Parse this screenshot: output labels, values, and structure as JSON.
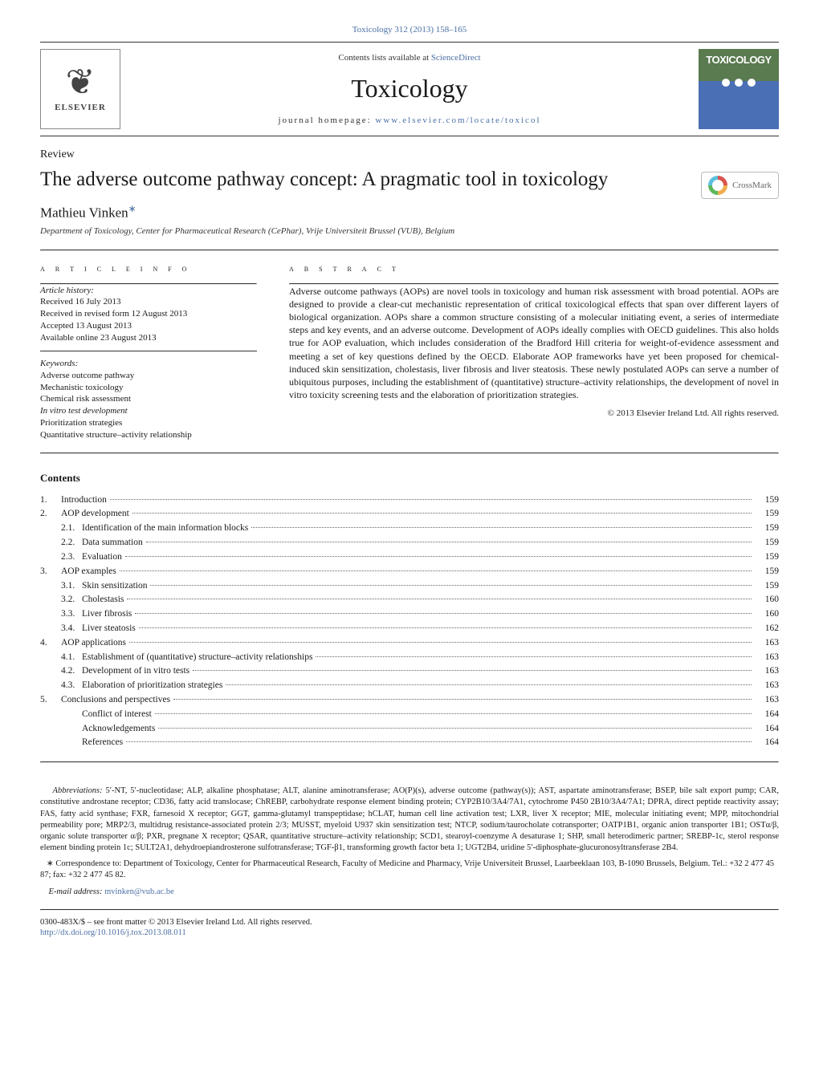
{
  "journal_ref": {
    "text": "Toxicology 312 (2013) 158–165",
    "link": "Toxicology 312 (2013) 158–165"
  },
  "header": {
    "contents_available_prefix": "Contents lists available at ",
    "contents_available_link": "ScienceDirect",
    "journal_title": "Toxicology",
    "homepage_prefix": "journal homepage: ",
    "homepage_link": "www.elsevier.com/locate/toxicol",
    "logo_left": {
      "publisher": "ELSEVIER"
    },
    "logo_right": {
      "word": "TOXICOLOGY"
    }
  },
  "review_label": "Review",
  "title": "The adverse outcome pathway concept: A pragmatic tool in toxicology",
  "crossmark_label": "CrossMark",
  "author": {
    "name": "Mathieu Vinken",
    "marker": "∗"
  },
  "affiliation": "Department of Toxicology, Center for Pharmaceutical Research (CePhar), Vrije Universiteit Brussel (VUB), Belgium",
  "article_info": {
    "heading": "a r t i c l e   i n f o",
    "history_head": "Article history:",
    "history": [
      "Received 16 July 2013",
      "Received in revised form 12 August 2013",
      "Accepted 13 August 2013",
      "Available online 23 August 2013"
    ],
    "keywords_head": "Keywords:",
    "keywords": [
      "Adverse outcome pathway",
      "Mechanistic toxicology",
      "Chemical risk assessment",
      "In vitro test development",
      "Prioritization strategies",
      "Quantitative structure–activity relationship"
    ]
  },
  "abstract": {
    "heading": "a b s t r a c t",
    "text": "Adverse outcome pathways (AOPs) are novel tools in toxicology and human risk assessment with broad potential. AOPs are designed to provide a clear-cut mechanistic representation of critical toxicological effects that span over different layers of biological organization. AOPs share a common structure consisting of a molecular initiating event, a series of intermediate steps and key events, and an adverse outcome. Development of AOPs ideally complies with OECD guidelines. This also holds true for AOP evaluation, which includes consideration of the Bradford Hill criteria for weight-of-evidence assessment and meeting a set of key questions defined by the OECD. Elaborate AOP frameworks have yet been proposed for chemical-induced skin sensitization, cholestasis, liver fibrosis and liver steatosis. These newly postulated AOPs can serve a number of ubiquitous purposes, including the establishment of (quantitative) structure–activity relationships, the development of novel in vitro toxicity screening tests and the elaboration of prioritization strategies.",
    "copyright": "© 2013 Elsevier Ireland Ltd. All rights reserved."
  },
  "contents": {
    "heading": "Contents",
    "items": [
      {
        "num": "1.",
        "label": "Introduction",
        "page": "159",
        "indent": 0
      },
      {
        "num": "2.",
        "label": "AOP development",
        "page": "159",
        "indent": 0
      },
      {
        "num": "2.1.",
        "label": "Identification of the main information blocks",
        "page": "159",
        "indent": 1
      },
      {
        "num": "2.2.",
        "label": "Data summation",
        "page": "159",
        "indent": 1
      },
      {
        "num": "2.3.",
        "label": "Evaluation",
        "page": "159",
        "indent": 1
      },
      {
        "num": "3.",
        "label": "AOP examples",
        "page": "159",
        "indent": 0
      },
      {
        "num": "3.1.",
        "label": "Skin sensitization",
        "page": "159",
        "indent": 1
      },
      {
        "num": "3.2.",
        "label": "Cholestasis",
        "page": "160",
        "indent": 1
      },
      {
        "num": "3.3.",
        "label": "Liver fibrosis",
        "page": "160",
        "indent": 1
      },
      {
        "num": "3.4.",
        "label": "Liver steatosis",
        "page": "162",
        "indent": 1
      },
      {
        "num": "4.",
        "label": "AOP applications",
        "page": "163",
        "indent": 0
      },
      {
        "num": "4.1.",
        "label": "Establishment of (quantitative) structure–activity relationships",
        "page": "163",
        "indent": 1
      },
      {
        "num": "4.2.",
        "label": "Development of in vitro tests",
        "page": "163",
        "indent": 1
      },
      {
        "num": "4.3.",
        "label": "Elaboration of prioritization strategies",
        "page": "163",
        "indent": 1
      },
      {
        "num": "5.",
        "label": "Conclusions and perspectives",
        "page": "163",
        "indent": 0
      },
      {
        "num": "",
        "label": "Conflict of interest",
        "page": "164",
        "indent": 1
      },
      {
        "num": "",
        "label": "Acknowledgements",
        "page": "164",
        "indent": 1
      },
      {
        "num": "",
        "label": "References",
        "page": "164",
        "indent": 1
      }
    ]
  },
  "abbreviations": {
    "lead": "Abbreviations:",
    "text": " 5′-NT, 5′-nucleotidase; ALP, alkaline phosphatase; ALT, alanine aminotransferase; AO(P)(s), adverse outcome (pathway(s)); AST, aspartate aminotransferase; BSEP, bile salt export pump; CAR, constitutive androstane receptor; CD36, fatty acid translocase; ChREBP, carbohydrate response element binding protein; CYP2B10/3A4/7A1, cytochrome P450 2B10/3A4/7A1; DPRA, direct peptide reactivity assay; FAS, fatty acid synthase; FXR, farnesoid X receptor; GGT, gamma-glutamyl transpeptidase; hCLAT, human cell line activation test; LXR, liver X receptor; MIE, molecular initiating event; MPP, mitochondrial permeability pore; MRP2/3, multidrug resistance-associated protein 2/3; MUSST, myeloid U937 skin sensitization test; NTCP, sodium/taurocholate cotransporter; OATP1B1, organic anion transporter 1B1; OSTα/β, organic solute transporter α/β; PXR, pregnane X receptor; QSAR, quantitative structure–activity relationship; SCD1, stearoyl-coenzyme A desaturase 1; SHP, small heterodimeric partner; SREBP-1c, sterol response element binding protein 1c; SULT2A1, dehydroepiandrosterone sulfotransferase; TGF-β1, transforming growth factor beta 1; UGT2B4, uridine 5′-diphosphate-glucuronosyltransferase 2B4."
  },
  "correspondence": {
    "marker": "∗",
    "text": " Correspondence to: Department of Toxicology, Center for Pharmaceutical Research, Faculty of Medicine and Pharmacy, Vrije Universiteit Brussel, Laarbeeklaan 103, B-1090 Brussels, Belgium. Tel.: +32 2 477 45 87; fax: +32 2 477 45 82.",
    "email_label": "E-mail address: ",
    "email": "mvinken@vub.ac.be"
  },
  "footer": {
    "issn": "0300-483X/$ – see front matter © 2013 Elsevier Ireland Ltd. All rights reserved.",
    "doi": "http://dx.doi.org/10.1016/j.tox.2013.08.011"
  },
  "colors": {
    "link": "#4a6fa5",
    "text": "#1a1a1a",
    "rule": "#333333",
    "tox_green": "#5a7a50",
    "tox_blue": "#4a6fb5"
  }
}
